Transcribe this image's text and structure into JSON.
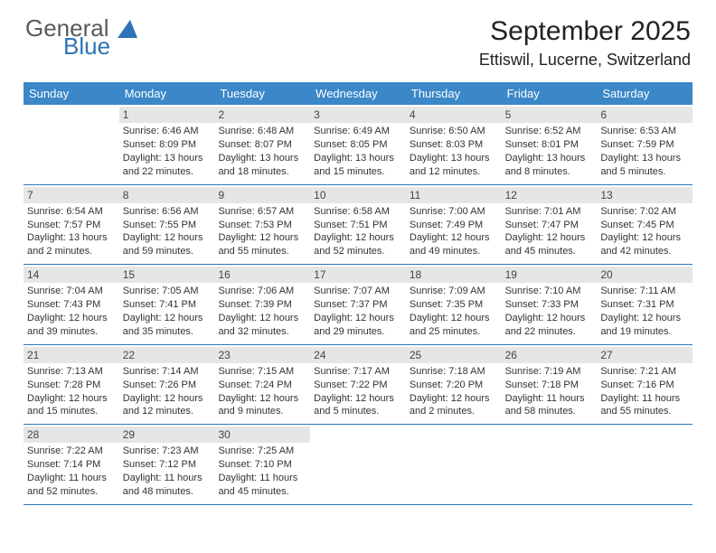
{
  "brand": {
    "word1": "General",
    "word2": "Blue"
  },
  "title": "September 2025",
  "location": "Ettiswil, Lucerne, Switzerland",
  "colors": {
    "header_bg": "#3b87c8",
    "header_text": "#ffffff",
    "daynum_bg": "#e6e6e6",
    "rule": "#2d74b8",
    "brand_gray": "#5a5a5a",
    "brand_blue": "#2d74b8",
    "page_bg": "#ffffff"
  },
  "typography": {
    "month_title_pt": 30,
    "location_pt": 18,
    "day_header_pt": 13,
    "cell_pt": 11
  },
  "day_names": [
    "Sunday",
    "Monday",
    "Tuesday",
    "Wednesday",
    "Thursday",
    "Friday",
    "Saturday"
  ],
  "weeks": [
    [
      null,
      {
        "n": "1",
        "sr": "Sunrise: 6:46 AM",
        "ss": "Sunset: 8:09 PM",
        "d1": "Daylight: 13 hours",
        "d2": "and 22 minutes."
      },
      {
        "n": "2",
        "sr": "Sunrise: 6:48 AM",
        "ss": "Sunset: 8:07 PM",
        "d1": "Daylight: 13 hours",
        "d2": "and 18 minutes."
      },
      {
        "n": "3",
        "sr": "Sunrise: 6:49 AM",
        "ss": "Sunset: 8:05 PM",
        "d1": "Daylight: 13 hours",
        "d2": "and 15 minutes."
      },
      {
        "n": "4",
        "sr": "Sunrise: 6:50 AM",
        "ss": "Sunset: 8:03 PM",
        "d1": "Daylight: 13 hours",
        "d2": "and 12 minutes."
      },
      {
        "n": "5",
        "sr": "Sunrise: 6:52 AM",
        "ss": "Sunset: 8:01 PM",
        "d1": "Daylight: 13 hours",
        "d2": "and 8 minutes."
      },
      {
        "n": "6",
        "sr": "Sunrise: 6:53 AM",
        "ss": "Sunset: 7:59 PM",
        "d1": "Daylight: 13 hours",
        "d2": "and 5 minutes."
      }
    ],
    [
      {
        "n": "7",
        "sr": "Sunrise: 6:54 AM",
        "ss": "Sunset: 7:57 PM",
        "d1": "Daylight: 13 hours",
        "d2": "and 2 minutes."
      },
      {
        "n": "8",
        "sr": "Sunrise: 6:56 AM",
        "ss": "Sunset: 7:55 PM",
        "d1": "Daylight: 12 hours",
        "d2": "and 59 minutes."
      },
      {
        "n": "9",
        "sr": "Sunrise: 6:57 AM",
        "ss": "Sunset: 7:53 PM",
        "d1": "Daylight: 12 hours",
        "d2": "and 55 minutes."
      },
      {
        "n": "10",
        "sr": "Sunrise: 6:58 AM",
        "ss": "Sunset: 7:51 PM",
        "d1": "Daylight: 12 hours",
        "d2": "and 52 minutes."
      },
      {
        "n": "11",
        "sr": "Sunrise: 7:00 AM",
        "ss": "Sunset: 7:49 PM",
        "d1": "Daylight: 12 hours",
        "d2": "and 49 minutes."
      },
      {
        "n": "12",
        "sr": "Sunrise: 7:01 AM",
        "ss": "Sunset: 7:47 PM",
        "d1": "Daylight: 12 hours",
        "d2": "and 45 minutes."
      },
      {
        "n": "13",
        "sr": "Sunrise: 7:02 AM",
        "ss": "Sunset: 7:45 PM",
        "d1": "Daylight: 12 hours",
        "d2": "and 42 minutes."
      }
    ],
    [
      {
        "n": "14",
        "sr": "Sunrise: 7:04 AM",
        "ss": "Sunset: 7:43 PM",
        "d1": "Daylight: 12 hours",
        "d2": "and 39 minutes."
      },
      {
        "n": "15",
        "sr": "Sunrise: 7:05 AM",
        "ss": "Sunset: 7:41 PM",
        "d1": "Daylight: 12 hours",
        "d2": "and 35 minutes."
      },
      {
        "n": "16",
        "sr": "Sunrise: 7:06 AM",
        "ss": "Sunset: 7:39 PM",
        "d1": "Daylight: 12 hours",
        "d2": "and 32 minutes."
      },
      {
        "n": "17",
        "sr": "Sunrise: 7:07 AM",
        "ss": "Sunset: 7:37 PM",
        "d1": "Daylight: 12 hours",
        "d2": "and 29 minutes."
      },
      {
        "n": "18",
        "sr": "Sunrise: 7:09 AM",
        "ss": "Sunset: 7:35 PM",
        "d1": "Daylight: 12 hours",
        "d2": "and 25 minutes."
      },
      {
        "n": "19",
        "sr": "Sunrise: 7:10 AM",
        "ss": "Sunset: 7:33 PM",
        "d1": "Daylight: 12 hours",
        "d2": "and 22 minutes."
      },
      {
        "n": "20",
        "sr": "Sunrise: 7:11 AM",
        "ss": "Sunset: 7:31 PM",
        "d1": "Daylight: 12 hours",
        "d2": "and 19 minutes."
      }
    ],
    [
      {
        "n": "21",
        "sr": "Sunrise: 7:13 AM",
        "ss": "Sunset: 7:28 PM",
        "d1": "Daylight: 12 hours",
        "d2": "and 15 minutes."
      },
      {
        "n": "22",
        "sr": "Sunrise: 7:14 AM",
        "ss": "Sunset: 7:26 PM",
        "d1": "Daylight: 12 hours",
        "d2": "and 12 minutes."
      },
      {
        "n": "23",
        "sr": "Sunrise: 7:15 AM",
        "ss": "Sunset: 7:24 PM",
        "d1": "Daylight: 12 hours",
        "d2": "and 9 minutes."
      },
      {
        "n": "24",
        "sr": "Sunrise: 7:17 AM",
        "ss": "Sunset: 7:22 PM",
        "d1": "Daylight: 12 hours",
        "d2": "and 5 minutes."
      },
      {
        "n": "25",
        "sr": "Sunrise: 7:18 AM",
        "ss": "Sunset: 7:20 PM",
        "d1": "Daylight: 12 hours",
        "d2": "and 2 minutes."
      },
      {
        "n": "26",
        "sr": "Sunrise: 7:19 AM",
        "ss": "Sunset: 7:18 PM",
        "d1": "Daylight: 11 hours",
        "d2": "and 58 minutes."
      },
      {
        "n": "27",
        "sr": "Sunrise: 7:21 AM",
        "ss": "Sunset: 7:16 PM",
        "d1": "Daylight: 11 hours",
        "d2": "and 55 minutes."
      }
    ],
    [
      {
        "n": "28",
        "sr": "Sunrise: 7:22 AM",
        "ss": "Sunset: 7:14 PM",
        "d1": "Daylight: 11 hours",
        "d2": "and 52 minutes."
      },
      {
        "n": "29",
        "sr": "Sunrise: 7:23 AM",
        "ss": "Sunset: 7:12 PM",
        "d1": "Daylight: 11 hours",
        "d2": "and 48 minutes."
      },
      {
        "n": "30",
        "sr": "Sunrise: 7:25 AM",
        "ss": "Sunset: 7:10 PM",
        "d1": "Daylight: 11 hours",
        "d2": "and 45 minutes."
      },
      null,
      null,
      null,
      null
    ]
  ]
}
